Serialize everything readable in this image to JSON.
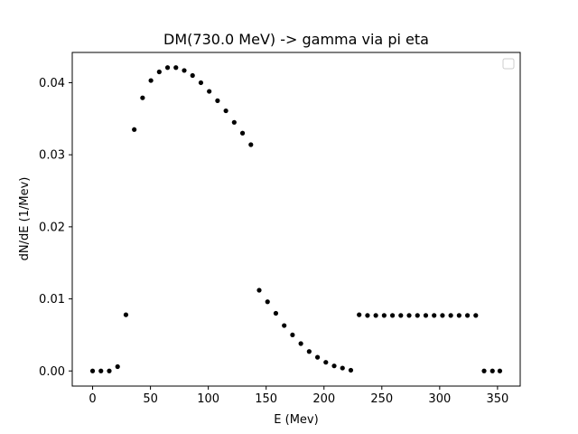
{
  "chart_data": {
    "type": "scatter",
    "title": "DM(730.0 MeV) -> gamma via pi eta",
    "xlabel": "E (Mev)",
    "ylabel": "dN/dE (1/Mev)",
    "xlim": [
      -17.6,
      369.6
    ],
    "ylim": [
      -0.0021,
      0.0442
    ],
    "x_ticks": [
      0,
      50,
      100,
      150,
      200,
      250,
      300,
      350
    ],
    "x_tick_labels": [
      "0",
      "50",
      "100",
      "150",
      "200",
      "250",
      "300",
      "350"
    ],
    "y_ticks": [
      0.0,
      0.01,
      0.02,
      0.03,
      0.04
    ],
    "y_tick_labels": [
      "0.00",
      "0.01",
      "0.02",
      "0.03",
      "0.04"
    ],
    "grid": false,
    "legend": "top-right",
    "marker_color": "#000000",
    "series": [
      {
        "x": [
          0,
          7.2,
          14.4,
          21.6,
          28.8,
          36.0,
          43.2,
          50.4,
          57.6,
          64.8,
          72.0,
          79.2,
          86.4,
          93.6,
          100.8,
          108.0,
          115.2,
          122.4,
          129.6,
          136.8,
          144.0,
          151.2,
          158.4,
          165.6,
          172.8,
          180.0,
          187.2,
          194.4,
          201.6,
          208.8,
          216.0,
          223.2,
          230.4,
          237.6,
          244.8,
          252.0,
          259.2,
          266.4,
          273.6,
          280.8,
          288.0,
          295.2,
          302.4,
          309.6,
          316.8,
          324.0,
          331.2,
          338.4,
          345.6,
          352.0
        ],
        "y": [
          0.0,
          0.0,
          0.0,
          0.0006,
          0.0078,
          0.0335,
          0.0379,
          0.0403,
          0.0415,
          0.0421,
          0.0421,
          0.0417,
          0.041,
          0.04,
          0.0388,
          0.0375,
          0.0361,
          0.0345,
          0.033,
          0.0314,
          0.0112,
          0.0096,
          0.008,
          0.0063,
          0.005,
          0.0038,
          0.0027,
          0.0019,
          0.0012,
          0.0007,
          0.0004,
          0.0001,
          0.0078,
          0.0077,
          0.0077,
          0.0077,
          0.0077,
          0.0077,
          0.0077,
          0.0077,
          0.0077,
          0.0077,
          0.0077,
          0.0077,
          0.0077,
          0.0077,
          0.0077,
          0.0,
          0.0,
          0.0
        ]
      }
    ]
  }
}
